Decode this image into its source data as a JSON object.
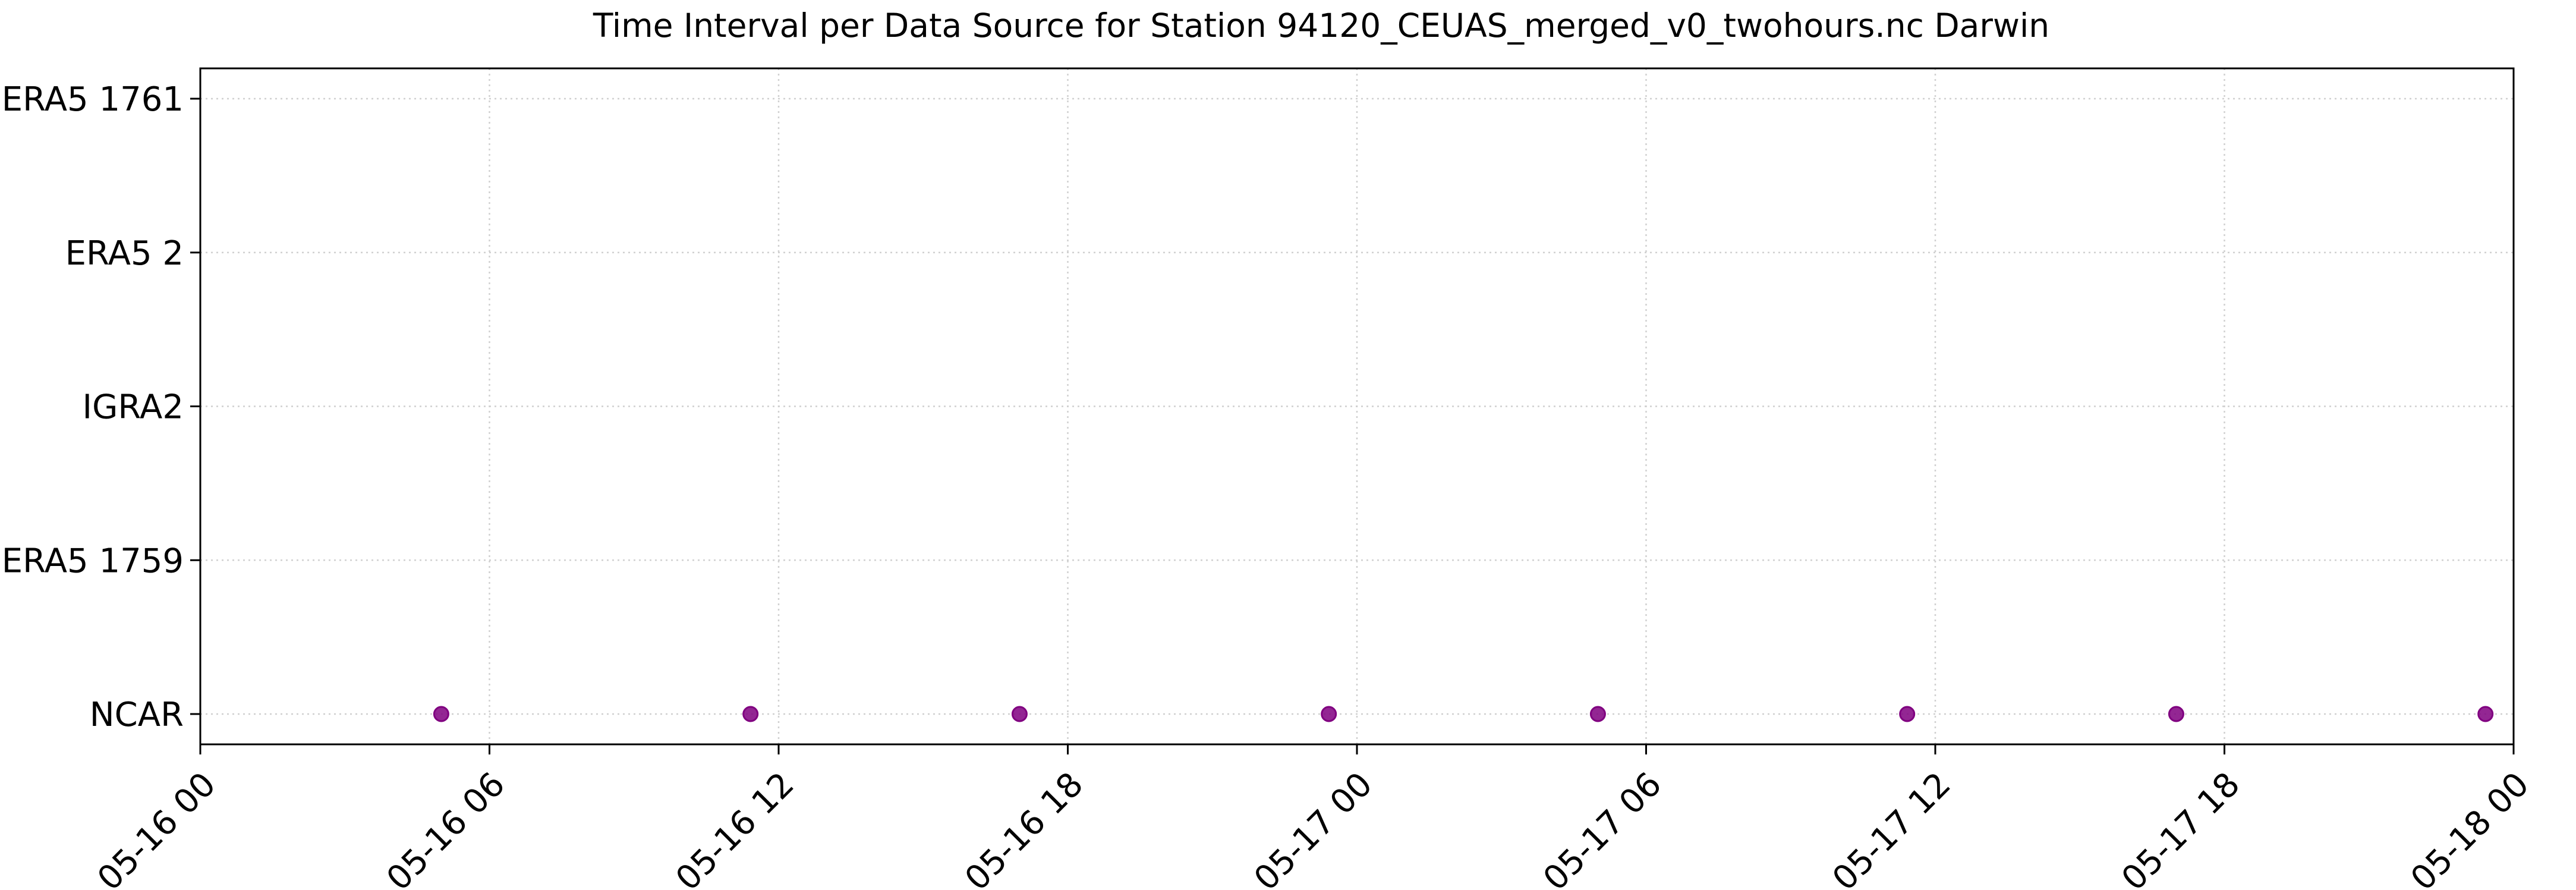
{
  "chart_data": {
    "type": "scatter",
    "title": "Time Interval per Data Source for Station 94120_CEUAS_merged_v0_twohours.nc Darwin",
    "xlabel": "",
    "ylabel": "",
    "x_axis": {
      "type": "datetime",
      "range": [
        "2024-05-16T00:00",
        "2024-05-18T00:00"
      ],
      "ticks": [
        {
          "value": "2024-05-16T00:00",
          "label": "05-16 00"
        },
        {
          "value": "2024-05-16T06:00",
          "label": "05-16 06"
        },
        {
          "value": "2024-05-16T12:00",
          "label": "05-16 12"
        },
        {
          "value": "2024-05-16T18:00",
          "label": "05-16 18"
        },
        {
          "value": "2024-05-17T00:00",
          "label": "05-17 00"
        },
        {
          "value": "2024-05-17T06:00",
          "label": "05-17 06"
        },
        {
          "value": "2024-05-17T12:00",
          "label": "05-17 12"
        },
        {
          "value": "2024-05-17T18:00",
          "label": "05-17 18"
        },
        {
          "value": "2024-05-18T00:00",
          "label": "05-18 00"
        }
      ],
      "tick_label_rotation": 45
    },
    "categories": [
      "NCAR",
      "ERA5 1759",
      "IGRA2",
      "ERA5 2",
      "ERA5 1761"
    ],
    "grid": true,
    "legend": "none",
    "marker_color": "#800080",
    "series": [
      {
        "points": [
          {
            "x": "2024-05-16T05:00",
            "y": "NCAR"
          },
          {
            "x": "2024-05-16T11:25",
            "y": "NCAR"
          },
          {
            "x": "2024-05-16T17:00",
            "y": "NCAR"
          },
          {
            "x": "2024-05-16T23:25",
            "y": "NCAR"
          },
          {
            "x": "2024-05-17T05:00",
            "y": "NCAR"
          },
          {
            "x": "2024-05-17T11:25",
            "y": "NCAR"
          },
          {
            "x": "2024-05-17T17:00",
            "y": "NCAR"
          },
          {
            "x": "2024-05-17T23:25",
            "y": "NCAR"
          }
        ]
      }
    ]
  }
}
